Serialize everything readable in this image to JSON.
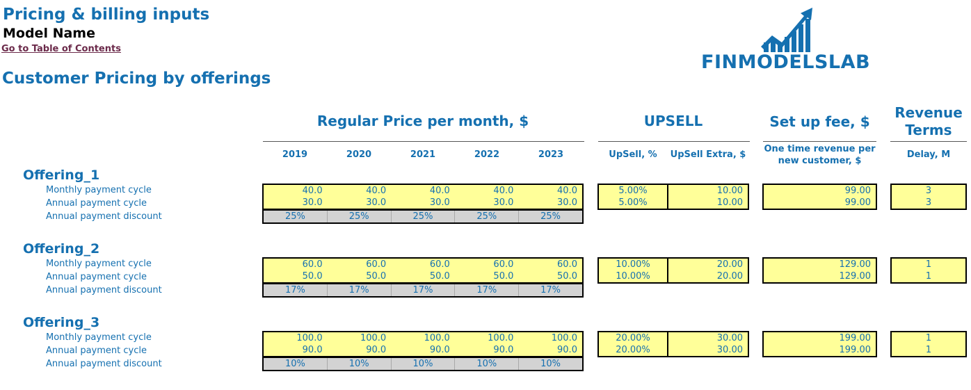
{
  "header": {
    "title": "Pricing & billing inputs",
    "model_name": "Model Name",
    "toc_link": "Go to Table of Contents",
    "section_title": "Customer Pricing by offerings"
  },
  "logo": {
    "text": "FINMODELSLAB",
    "color": "#1570b0"
  },
  "groups": {
    "regular_price": "Regular Price per month, $",
    "upsell": "UPSELL",
    "setup_fee": "Set up fee, $",
    "revenue_terms": "Revenue Terms"
  },
  "columns": {
    "years": [
      "2019",
      "2020",
      "2021",
      "2022",
      "2023"
    ],
    "upsell_pct": "UpSell, %",
    "upsell_extra": "UpSell Extra, $",
    "setup_fee": "One time revenue per new customer, $",
    "delay": "Delay, M"
  },
  "row_labels": {
    "monthly": "Monthly payment cycle",
    "annual": "Annual payment cycle",
    "discount": "Annual payment discount"
  },
  "offerings": [
    {
      "name": "Offering_1",
      "monthly": [
        "40.0",
        "40.0",
        "40.0",
        "40.0",
        "40.0"
      ],
      "annual": [
        "30.0",
        "30.0",
        "30.0",
        "30.0",
        "30.0"
      ],
      "discount": [
        "25%",
        "25%",
        "25%",
        "25%",
        "25%"
      ],
      "upsell_pct": [
        "5.00%",
        "5.00%"
      ],
      "upsell_extra": [
        "10.00",
        "10.00"
      ],
      "setup_fee": [
        "99.00",
        "99.00"
      ],
      "delay": [
        "3",
        "3"
      ]
    },
    {
      "name": "Offering_2",
      "monthly": [
        "60.0",
        "60.0",
        "60.0",
        "60.0",
        "60.0"
      ],
      "annual": [
        "50.0",
        "50.0",
        "50.0",
        "50.0",
        "50.0"
      ],
      "discount": [
        "17%",
        "17%",
        "17%",
        "17%",
        "17%"
      ],
      "upsell_pct": [
        "10.00%",
        "10.00%"
      ],
      "upsell_extra": [
        "20.00",
        "20.00"
      ],
      "setup_fee": [
        "129.00",
        "129.00"
      ],
      "delay": [
        "1",
        "1"
      ]
    },
    {
      "name": "Offering_3",
      "monthly": [
        "100.0",
        "100.0",
        "100.0",
        "100.0",
        "100.0"
      ],
      "annual": [
        "90.0",
        "90.0",
        "90.0",
        "90.0",
        "90.0"
      ],
      "discount": [
        "10%",
        "10%",
        "10%",
        "10%",
        "10%"
      ],
      "upsell_pct": [
        "20.00%",
        "20.00%"
      ],
      "upsell_extra": [
        "30.00",
        "30.00"
      ],
      "setup_fee": [
        "199.00",
        "199.00"
      ],
      "delay": [
        "1",
        "1"
      ]
    }
  ]
}
